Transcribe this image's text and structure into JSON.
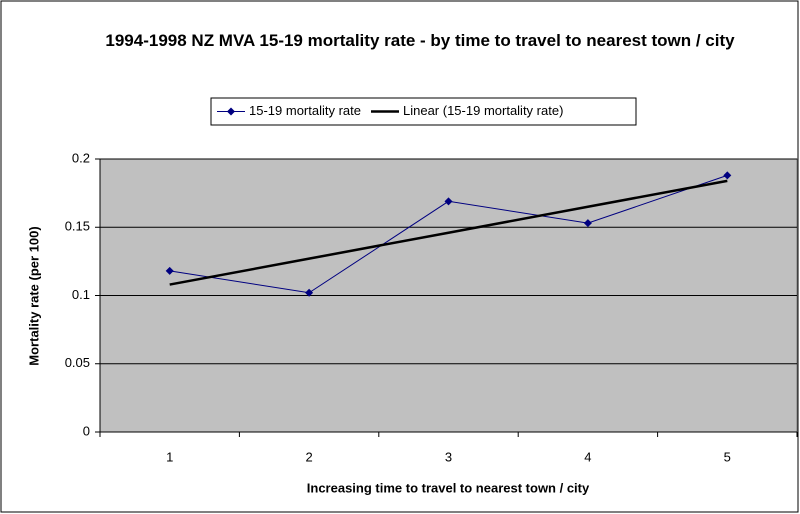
{
  "chart_data": {
    "type": "line",
    "title": "1994-1998 NZ MVA 15-19 mortality rate - by time to travel to nearest town / city",
    "x_label": "Increasing time to travel to nearest town / city",
    "y_label": "Mortality rate (per 100)",
    "categories": [
      1,
      2,
      3,
      4,
      5
    ],
    "series": [
      {
        "name": "15-19 mortality rate",
        "color": "#000080",
        "marker": "diamond",
        "values": [
          0.118,
          0.102,
          0.169,
          0.153,
          0.188
        ]
      },
      {
        "name": "Linear (15-19 mortality rate)",
        "color": "#000000",
        "marker": "none",
        "values": [
          0.108,
          0.127,
          0.146,
          0.165,
          0.184
        ]
      }
    ],
    "ylim": [
      0,
      0.2
    ],
    "yticks": [
      0,
      0.05,
      0.1,
      0.15,
      0.2
    ],
    "grid": true,
    "legend": "top"
  }
}
